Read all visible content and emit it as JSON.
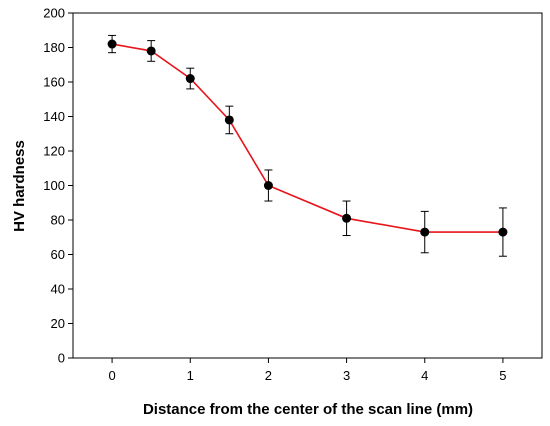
{
  "chart_data": {
    "type": "line",
    "xlabel": "Distance from the center of the scan line (mm)",
    "ylabel": "HV hardness",
    "xlim": [
      -0.5,
      5.5
    ],
    "ylim": [
      0,
      200
    ],
    "xticks": [
      0,
      1,
      2,
      3,
      4,
      5
    ],
    "yticks": [
      0,
      20,
      40,
      60,
      80,
      100,
      120,
      140,
      160,
      180,
      200
    ],
    "grid": false,
    "line_color": "#e8141b",
    "marker_color": "#000000",
    "series": [
      {
        "x": [
          0,
          0.5,
          1,
          1.5,
          2,
          3,
          4,
          5
        ],
        "y": [
          182,
          178,
          162,
          138,
          100,
          81,
          73,
          73
        ],
        "error": [
          5,
          6,
          6,
          8,
          9,
          10,
          12,
          14
        ]
      }
    ]
  }
}
